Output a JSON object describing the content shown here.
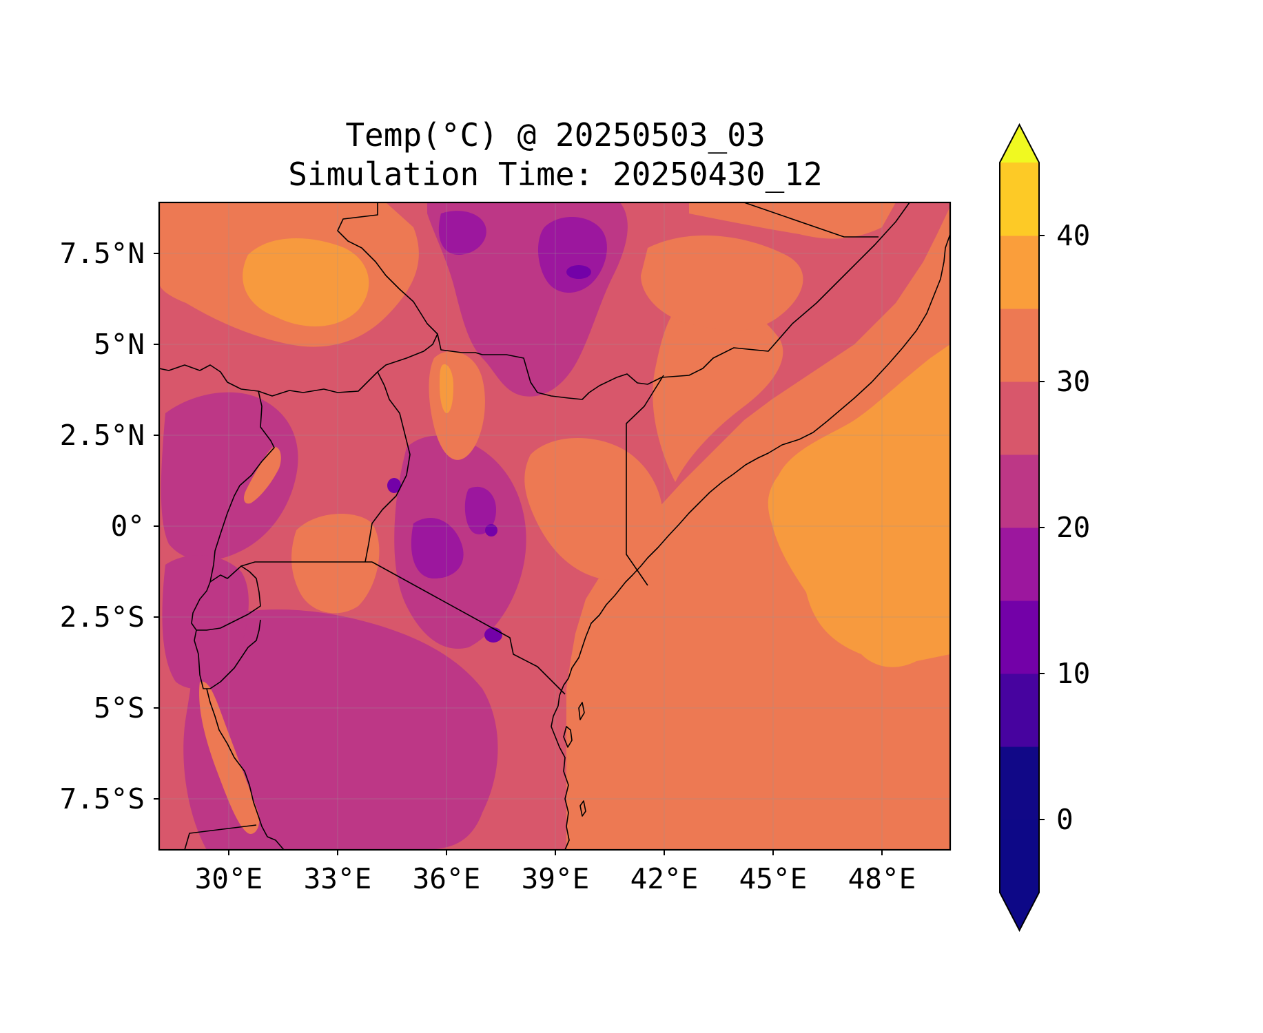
{
  "title": {
    "line1": "Temp(°C) @ 20250503_03",
    "line2": "Simulation Time: 20250430_12"
  },
  "map": {
    "region": "East Africa",
    "lon_range": [
      27.5,
      49.5
    ],
    "lat_range": [
      -8.9,
      9.0
    ],
    "x_ticks": [
      "30°E",
      "33°E",
      "36°E",
      "39°E",
      "42°E",
      "45°E",
      "48°E"
    ],
    "y_ticks": [
      "7.5°N",
      "5°N",
      "2.5°N",
      "0°",
      "2.5°S",
      "5°S",
      "7.5°S"
    ],
    "gridlines": true,
    "borders_color": "#000000"
  },
  "colorbar": {
    "colormap": "plasma",
    "orientation": "vertical",
    "extend": "both",
    "levels": [
      -5,
      0,
      5,
      10,
      15,
      20,
      25,
      30,
      35,
      40,
      45
    ],
    "tick_labels": [
      "0",
      "10",
      "20",
      "30",
      "40"
    ],
    "colors": [
      "#0d0887",
      "#110887",
      "#47039f",
      "#7301a8",
      "#9c179e",
      "#bd3786",
      "#d8576b",
      "#ed7953",
      "#fa9e3b",
      "#fdca26",
      "#f0f921"
    ]
  }
}
